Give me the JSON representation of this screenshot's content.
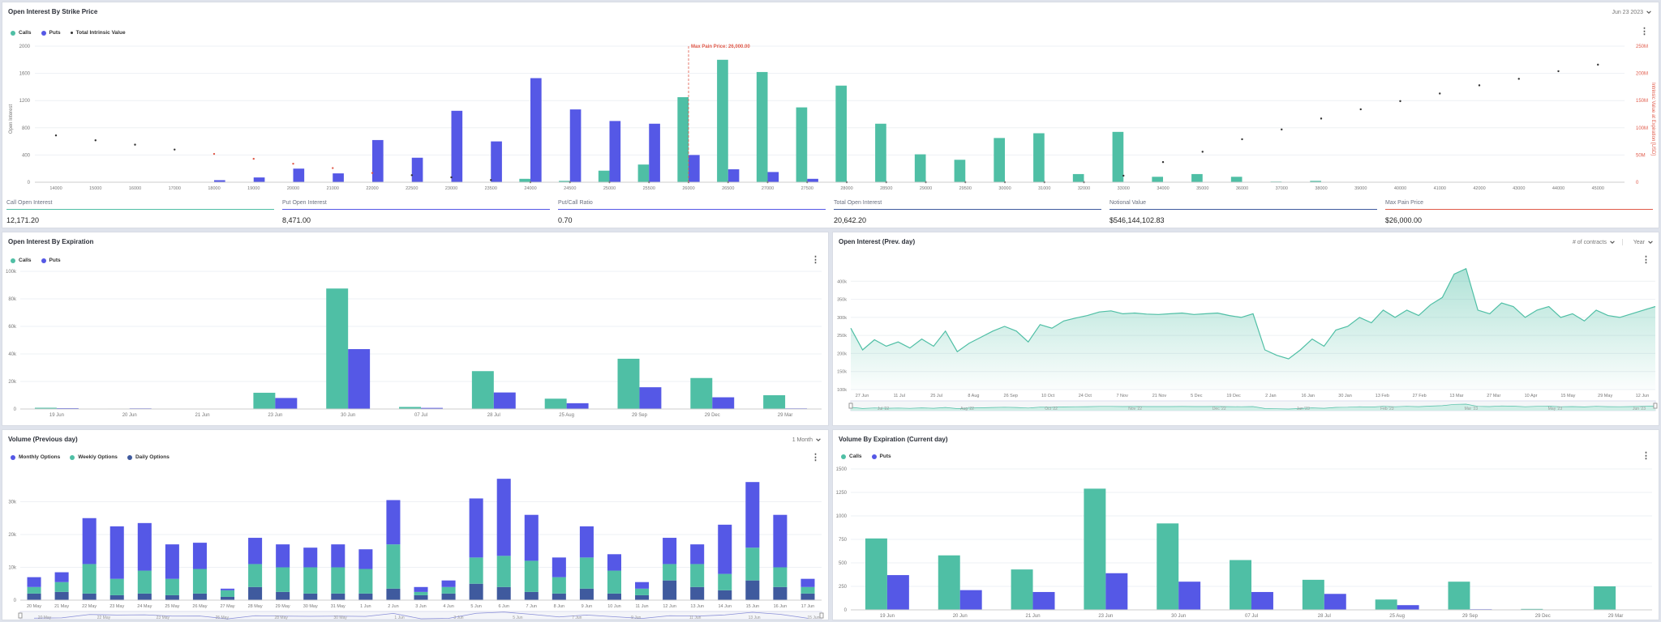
{
  "colors": {
    "calls": "#4fbfa5",
    "puts": "#5558e6",
    "intrinsic": "#333333",
    "maxpain": "#e05a4a",
    "daily": "#3f5a9e",
    "monthly": "#5558e6",
    "weekly": "#4fbfa5"
  },
  "strike_panel": {
    "title": "Open Interest By Strike Price",
    "date_label": "Jun 23 2023",
    "legend": {
      "calls": "Calls",
      "puts": "Puts",
      "intrinsic": "Total Intrinsic Value"
    },
    "left_axis_label": "Open Interest",
    "right_axis_label": "Intrinsic Value at Expiration [USD]",
    "max_pain_label": "Max Pain Price: 26,000.00"
  },
  "stats": [
    {
      "label": "Call Open Interest",
      "value": "12,171.20",
      "color": "#4fbfa5"
    },
    {
      "label": "Put Open Interest",
      "value": "8,471.00",
      "color": "#5558e6"
    },
    {
      "label": "Put/Call Ratio",
      "value": "0.70",
      "color": "#5558e6"
    },
    {
      "label": "Total Open Interest",
      "value": "20,642.20",
      "color": "#3f5a9e"
    },
    {
      "label": "Notional Value",
      "value": "$546,144,102.83",
      "color": "#3f5a9e"
    },
    {
      "label": "Max Pain Price",
      "value": "$26,000.00",
      "color": "#e05a4a"
    }
  ],
  "expiration_panel": {
    "title": "Open Interest By Expiration",
    "legend": {
      "calls": "Calls",
      "puts": "Puts"
    }
  },
  "prevday_panel": {
    "title": "Open Interest (Prev. day)",
    "dropdown1": "# of contracts",
    "dropdown2": "Year"
  },
  "volume_panel": {
    "title": "Volume (Previous day)",
    "dropdown": "1 Month",
    "legend": {
      "monthly": "Monthly Options",
      "weekly": "Weekly Options",
      "daily": "Daily Options"
    }
  },
  "volexp_panel": {
    "title": "Volume By Expiration (Current day)",
    "legend": {
      "calls": "Calls",
      "puts": "Puts"
    }
  },
  "chart_data": [
    {
      "type": "bar",
      "id": "strike",
      "title": "Open Interest By Strike Price",
      "ylabel": "Open Interest",
      "y2label": "Intrinsic Value at Expiration [USD]",
      "ylim": [
        0,
        2000
      ],
      "yticks": [
        0,
        400,
        800,
        1200,
        1600,
        2000
      ],
      "y2ticks": [
        "0",
        "50M",
        "100M",
        "150M",
        "200M",
        "250M"
      ],
      "categories": [
        "14000",
        "15000",
        "16000",
        "17000",
        "18000",
        "19000",
        "20000",
        "21000",
        "22000",
        "22500",
        "23000",
        "23500",
        "24000",
        "24500",
        "25000",
        "25500",
        "26000",
        "26500",
        "27000",
        "27500",
        "28000",
        "28500",
        "29000",
        "29500",
        "30000",
        "31000",
        "32000",
        "33000",
        "34000",
        "35000",
        "36000",
        "37000",
        "38000",
        "39000",
        "40000",
        "41000",
        "42000",
        "43000",
        "44000",
        "45000"
      ],
      "series": [
        {
          "name": "Calls",
          "values": [
            0,
            0,
            0,
            0,
            0,
            0,
            0,
            0,
            0,
            0,
            0,
            0,
            50,
            20,
            170,
            260,
            1250,
            1800,
            1620,
            1100,
            1420,
            860,
            410,
            330,
            650,
            720,
            120,
            740,
            80,
            120,
            80,
            10,
            20,
            0,
            0,
            0,
            0,
            0,
            0,
            0
          ]
        },
        {
          "name": "Puts",
          "values": [
            0,
            0,
            0,
            0,
            30,
            70,
            200,
            130,
            620,
            360,
            1050,
            600,
            1530,
            1070,
            900,
            860,
            400,
            190,
            150,
            50,
            0,
            0,
            0,
            0,
            0,
            0,
            0,
            0,
            0,
            0,
            0,
            0,
            0,
            0,
            0,
            0,
            0,
            0,
            0,
            0
          ]
        },
        {
          "name": "Total Intrinsic Value",
          "values": [
            86,
            77,
            69,
            60,
            52,
            43,
            34,
            26,
            17,
            13,
            9,
            4,
            0,
            0,
            0,
            0,
            0,
            0,
            0,
            0,
            0,
            0,
            0,
            0,
            0,
            0,
            0,
            12,
            37,
            56,
            79,
            97,
            117,
            134,
            149,
            163,
            178,
            190,
            204,
            216
          ]
        }
      ],
      "max_pain": "26000"
    },
    {
      "type": "bar",
      "id": "expiration",
      "title": "Open Interest By Expiration",
      "ylim": [
        0,
        100000
      ],
      "yticks": [
        "0",
        "20k",
        "40k",
        "60k",
        "80k",
        "100k"
      ],
      "categories": [
        "19 Jun",
        "20 Jun",
        "21 Jun",
        "23 Jun",
        "30 Jun",
        "07 Jul",
        "28 Jul",
        "25 Aug",
        "29 Sep",
        "29 Dec",
        "29 Mar"
      ],
      "series": [
        {
          "name": "Calls",
          "values": [
            900,
            300,
            0,
            11800,
            87500,
            1500,
            27500,
            7500,
            36500,
            22500,
            10000
          ]
        },
        {
          "name": "Puts",
          "values": [
            600,
            100,
            0,
            8000,
            43500,
            800,
            12000,
            4200,
            15800,
            8500,
            300
          ]
        }
      ]
    },
    {
      "type": "area",
      "id": "prevday",
      "title": "Open Interest (Prev. day)",
      "ylim": [
        100000,
        450000
      ],
      "yticks": [
        "100k",
        "150k",
        "200k",
        "250k",
        "300k",
        "350k",
        "400k"
      ],
      "xticks": [
        "27 Jun",
        "11 Jul",
        "25 Jul",
        "8 Aug",
        "26 Sep",
        "10 Oct",
        "24 Oct",
        "7 Nov",
        "21 Nov",
        "5 Dec",
        "19 Dec",
        "2 Jan",
        "16 Jan",
        "30 Jan",
        "13 Feb",
        "27 Feb",
        "13 Mar",
        "27 Mar",
        "10 Apr",
        "15 May",
        "29 May",
        "12 Jun"
      ],
      "navigator_ticks": [
        "Jul '22",
        "Aug '22",
        "Oct '22",
        "Nov '22",
        "Dec '22",
        "Jan '23",
        "Feb '23",
        "Mar '23",
        "May '23",
        "Jun '23"
      ],
      "values": [
        270000,
        210000,
        238000,
        220000,
        232000,
        215000,
        240000,
        220000,
        262000,
        205000,
        228000,
        245000,
        262000,
        275000,
        262000,
        232000,
        280000,
        270000,
        290000,
        298000,
        305000,
        315000,
        318000,
        310000,
        312000,
        309000,
        308000,
        310000,
        312000,
        308000,
        310000,
        312000,
        305000,
        300000,
        310000,
        210000,
        195000,
        185000,
        210000,
        240000,
        220000,
        265000,
        275000,
        300000,
        285000,
        320000,
        300000,
        320000,
        305000,
        335000,
        355000,
        420000,
        435000,
        320000,
        310000,
        340000,
        330000,
        300000,
        320000,
        330000,
        300000,
        310000,
        290000,
        320000,
        305000,
        300000,
        310000,
        320000,
        330000
      ]
    },
    {
      "type": "bar",
      "id": "volume",
      "title": "Volume (Previous day)",
      "stacked": true,
      "ylim": [
        0,
        40000
      ],
      "yticks": [
        "0",
        "10k",
        "20k",
        "30k"
      ],
      "categories": [
        "20 May",
        "21 May",
        "22 May",
        "23 May",
        "24 May",
        "25 May",
        "26 May",
        "27 May",
        "28 May",
        "29 May",
        "30 May",
        "31 May",
        "1 Jun",
        "2 Jun",
        "3 Jun",
        "4 Jun",
        "5 Jun",
        "6 Jun",
        "7 Jun",
        "8 Jun",
        "9 Jun",
        "10 Jun",
        "11 Jun",
        "12 Jun",
        "13 Jun",
        "14 Jun",
        "15 Jun",
        "16 Jun",
        "17 Jun"
      ],
      "navigator_ticks": [
        "20 May",
        "22 May",
        "23 May",
        "25 May",
        "28 May",
        "30 May",
        "1 Jun",
        "3 Jun",
        "5 Jun",
        "7 Jun",
        "9 Jun",
        "11 Jun",
        "13 Jun",
        "15 Jun"
      ],
      "series": [
        {
          "name": "Daily Options",
          "values": [
            2000,
            2500,
            2000,
            1500,
            2000,
            1500,
            2000,
            1000,
            4000,
            2500,
            2000,
            2000,
            2000,
            3500,
            1500,
            2000,
            5000,
            4000,
            2500,
            2000,
            3500,
            2000,
            1500,
            6000,
            4000,
            3000,
            6000,
            4000,
            2000
          ]
        },
        {
          "name": "Weekly Options",
          "values": [
            2000,
            3000,
            9000,
            5000,
            7000,
            5000,
            7500,
            2000,
            7000,
            7500,
            8000,
            8000,
            7500,
            13500,
            1000,
            2000,
            8000,
            9500,
            9500,
            5000,
            9500,
            7000,
            2000,
            5000,
            7000,
            5000,
            10000,
            6000,
            2000
          ]
        },
        {
          "name": "Monthly Options",
          "values": [
            3000,
            3000,
            14000,
            16000,
            14500,
            10500,
            8000,
            500,
            8000,
            7000,
            6000,
            7000,
            6000,
            13500,
            1500,
            2000,
            18000,
            23500,
            14000,
            6000,
            9500,
            5000,
            2000,
            8000,
            6000,
            15000,
            20000,
            16000,
            2500
          ]
        }
      ]
    },
    {
      "type": "bar",
      "id": "volexp",
      "title": "Volume By Expiration (Current day)",
      "ylim": [
        0,
        1500
      ],
      "yticks": [
        "0",
        "250",
        "500",
        "750",
        "1000",
        "1250",
        "1500"
      ],
      "categories": [
        "19 Jun",
        "20 Jun",
        "21 Jun",
        "23 Jun",
        "30 Jun",
        "07 Jul",
        "28 Jul",
        "25 Aug",
        "29 Sep",
        "29 Dec",
        "29 Mar"
      ],
      "series": [
        {
          "name": "Calls",
          "values": [
            760,
            580,
            430,
            1290,
            920,
            530,
            320,
            110,
            300,
            10,
            250
          ]
        },
        {
          "name": "Puts",
          "values": [
            370,
            210,
            190,
            390,
            300,
            190,
            170,
            50,
            5,
            0,
            0
          ]
        }
      ]
    }
  ]
}
